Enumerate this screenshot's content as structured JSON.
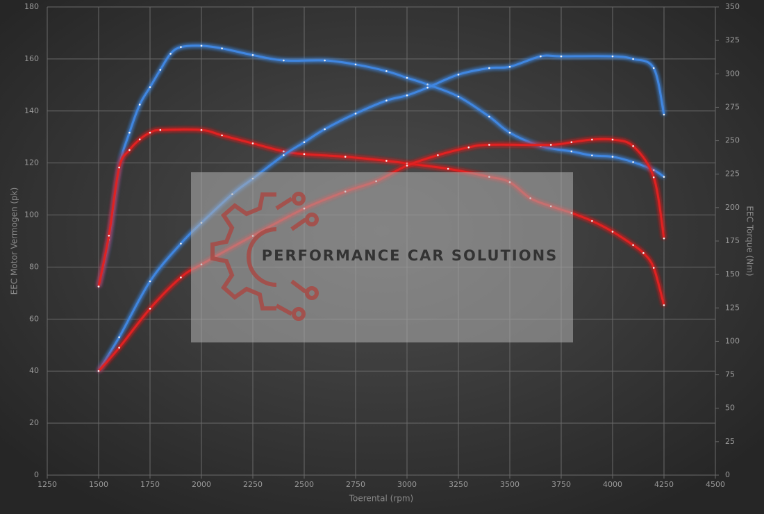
{
  "chart_data": {
    "type": "line",
    "x_label": "Toerental (rpm)",
    "y_label": "EEC Motor Vermogen (pk)",
    "y2_label": "EEC Torque (Nm)",
    "watermark": "PERFORMANCE CAR SOLUTIONS",
    "xlim": [
      1250,
      4500
    ],
    "xticks": [
      1250,
      1500,
      1750,
      2000,
      2250,
      2500,
      2750,
      3000,
      3250,
      3500,
      3750,
      4000,
      4250,
      4500
    ],
    "ylim": [
      0,
      180
    ],
    "yticks": [
      0,
      20,
      40,
      60,
      80,
      100,
      120,
      140,
      160,
      180
    ],
    "y2lim": [
      0,
      350
    ],
    "y2ticks": [
      0,
      25,
      50,
      75,
      100,
      125,
      150,
      175,
      200,
      225,
      250,
      275,
      300,
      325,
      350
    ],
    "grid": true,
    "series": [
      {
        "color": "#3f86e0",
        "axis": "y2",
        "x": [
          1500,
          1550,
          1600,
          1650,
          1700,
          1750,
          1800,
          1850,
          1900,
          2000,
          2100,
          2250,
          2400,
          2600,
          2750,
          2900,
          3000,
          3100,
          3250,
          3400,
          3500,
          3650,
          3800,
          3900,
          4000,
          4100,
          4200,
          4250
        ],
        "values": [
          141,
          176,
          230,
          256,
          277,
          290,
          303,
          315,
          320,
          321,
          319,
          314,
          310,
          310,
          307,
          302,
          297,
          292,
          283,
          268,
          256,
          246,
          242,
          239,
          238,
          234,
          228,
          223
        ]
      },
      {
        "color": "#e02020",
        "axis": "y2",
        "x": [
          1500,
          1550,
          1600,
          1650,
          1700,
          1750,
          1800,
          2000,
          2100,
          2250,
          2400,
          2500,
          2700,
          2900,
          3000,
          3200,
          3400,
          3500,
          3600,
          3700,
          3800,
          3900,
          4000,
          4100,
          4150,
          4200,
          4250
        ],
        "values": [
          141,
          179,
          230,
          243,
          251,
          256,
          258,
          258,
          254,
          248,
          242,
          240,
          238,
          235,
          233,
          229,
          223,
          219,
          207,
          201,
          196,
          190,
          182,
          172,
          166,
          155,
          127
        ]
      },
      {
        "color": "#3f86e0",
        "x": [
          1500,
          1600,
          1750,
          1900,
          2000,
          2150,
          2250,
          2400,
          2500,
          2600,
          2750,
          2900,
          3000,
          3100,
          3250,
          3400,
          3500,
          3650,
          3750,
          4000,
          4100,
          4200,
          4250
        ],
        "values": [
          40,
          53,
          74.5,
          89,
          97,
          108,
          114,
          123,
          128,
          133,
          139,
          144,
          146,
          149,
          154,
          156.5,
          157,
          161,
          161,
          161,
          160,
          156.5,
          138.6
        ]
      },
      {
        "color": "#e02020",
        "x": [
          1500,
          1600,
          1750,
          1900,
          2000,
          2250,
          2500,
          2700,
          2850,
          3000,
          3150,
          3300,
          3400,
          3700,
          3800,
          3900,
          4000,
          4100,
          4200,
          4250
        ],
        "values": [
          40,
          49,
          64,
          76,
          81,
          92,
          102.5,
          109,
          113,
          119,
          123,
          126,
          127,
          127,
          128,
          129,
          129,
          126.5,
          114.5,
          91
        ]
      }
    ]
  }
}
